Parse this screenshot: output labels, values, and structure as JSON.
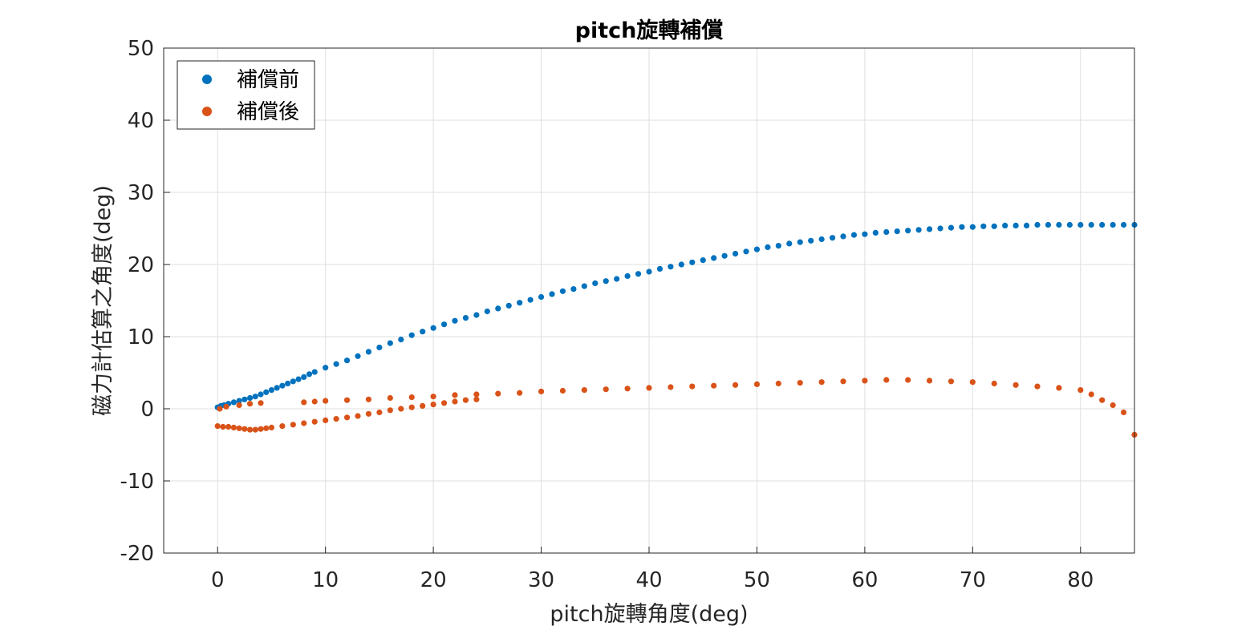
{
  "chart_data": {
    "type": "scatter",
    "title": "pitch旋轉補償",
    "xlabel": "pitch旋轉角度(deg)",
    "ylabel": "磁力計估算之角度(deg)",
    "xlim": [
      -5,
      85
    ],
    "ylim": [
      -20,
      50
    ],
    "xticks": [
      0,
      10,
      20,
      30,
      40,
      50,
      60,
      70,
      80
    ],
    "yticks": [
      -20,
      -10,
      0,
      10,
      20,
      30,
      40,
      50
    ],
    "grid": true,
    "legend_position": "top-left",
    "series": [
      {
        "name": "補償前",
        "color": "#0072BD",
        "points": [
          [
            0,
            0.2
          ],
          [
            0.3,
            0.4
          ],
          [
            0.6,
            0.5
          ],
          [
            1,
            0.7
          ],
          [
            1.5,
            0.9
          ],
          [
            2,
            1.1
          ],
          [
            2.5,
            1.3
          ],
          [
            3,
            1.5
          ],
          [
            3.5,
            1.7
          ],
          [
            4,
            2.0
          ],
          [
            4.5,
            2.3
          ],
          [
            5,
            2.6
          ],
          [
            5.5,
            2.9
          ],
          [
            6,
            3.2
          ],
          [
            6.5,
            3.5
          ],
          [
            7,
            3.8
          ],
          [
            7.5,
            4.1
          ],
          [
            8,
            4.4
          ],
          [
            8.5,
            4.8
          ],
          [
            9,
            5.1
          ],
          [
            10,
            5.7
          ],
          [
            11,
            6.2
          ],
          [
            12,
            6.7
          ],
          [
            13,
            7.3
          ],
          [
            14,
            7.9
          ],
          [
            15,
            8.5
          ],
          [
            16,
            9.1
          ],
          [
            17,
            9.6
          ],
          [
            18,
            10.2
          ],
          [
            19,
            10.7
          ],
          [
            20,
            11.2
          ],
          [
            21,
            11.7
          ],
          [
            22,
            12.2
          ],
          [
            23,
            12.6
          ],
          [
            24,
            13.0
          ],
          [
            25,
            13.5
          ],
          [
            26,
            13.9
          ],
          [
            27,
            14.3
          ],
          [
            28,
            14.7
          ],
          [
            29,
            15.1
          ],
          [
            30,
            15.5
          ],
          [
            31,
            15.9
          ],
          [
            32,
            16.3
          ],
          [
            33,
            16.6
          ],
          [
            34,
            17.0
          ],
          [
            35,
            17.4
          ],
          [
            36,
            17.7
          ],
          [
            37,
            18.0
          ],
          [
            38,
            18.4
          ],
          [
            39,
            18.7
          ],
          [
            40,
            19.0
          ],
          [
            41,
            19.4
          ],
          [
            42,
            19.7
          ],
          [
            43,
            20.0
          ],
          [
            44,
            20.3
          ],
          [
            45,
            20.6
          ],
          [
            46,
            20.9
          ],
          [
            47,
            21.2
          ],
          [
            48,
            21.5
          ],
          [
            49,
            21.8
          ],
          [
            50,
            22.1
          ],
          [
            51,
            22.4
          ],
          [
            52,
            22.6
          ],
          [
            53,
            22.9
          ],
          [
            54,
            23.1
          ],
          [
            55,
            23.3
          ],
          [
            56,
            23.5
          ],
          [
            57,
            23.7
          ],
          [
            58,
            23.9
          ],
          [
            59,
            24.1
          ],
          [
            60,
            24.2
          ],
          [
            61,
            24.4
          ],
          [
            62,
            24.5
          ],
          [
            63,
            24.6
          ],
          [
            64,
            24.7
          ],
          [
            65,
            24.8
          ],
          [
            66,
            24.9
          ],
          [
            67,
            25.0
          ],
          [
            68,
            25.1
          ],
          [
            69,
            25.2
          ],
          [
            70,
            25.2
          ],
          [
            71,
            25.3
          ],
          [
            72,
            25.3
          ],
          [
            73,
            25.4
          ],
          [
            74,
            25.4
          ],
          [
            75,
            25.4
          ],
          [
            76,
            25.5
          ],
          [
            77,
            25.5
          ],
          [
            78,
            25.5
          ],
          [
            79,
            25.5
          ],
          [
            80,
            25.5
          ],
          [
            81,
            25.5
          ],
          [
            82,
            25.5
          ],
          [
            83,
            25.5
          ],
          [
            84,
            25.5
          ],
          [
            85,
            25.5
          ]
        ]
      },
      {
        "name": "補償後",
        "color": "#D95319",
        "points": [
          [
            0,
            -2.4
          ],
          [
            0.5,
            -2.5
          ],
          [
            1,
            -2.5
          ],
          [
            1.5,
            -2.6
          ],
          [
            2,
            -2.7
          ],
          [
            2.5,
            -2.8
          ],
          [
            3,
            -2.9
          ],
          [
            3.5,
            -2.9
          ],
          [
            4,
            -2.8
          ],
          [
            4.5,
            -2.7
          ],
          [
            5,
            -2.6
          ],
          [
            6,
            -2.4
          ],
          [
            7,
            -2.2
          ],
          [
            8,
            -2.0
          ],
          [
            9,
            -1.8
          ],
          [
            10,
            -1.6
          ],
          [
            11,
            -1.4
          ],
          [
            12,
            -1.2
          ],
          [
            13,
            -1.0
          ],
          [
            14,
            -0.7
          ],
          [
            15,
            -0.5
          ],
          [
            16,
            -0.2
          ],
          [
            17,
            0.0
          ],
          [
            18,
            0.2
          ],
          [
            19,
            0.4
          ],
          [
            20,
            0.6
          ],
          [
            21,
            0.8
          ],
          [
            22,
            1.0
          ],
          [
            23,
            1.2
          ],
          [
            24,
            1.3
          ],
          [
            0.2,
            0.0
          ],
          [
            0.8,
            0.3
          ],
          [
            2,
            0.5
          ],
          [
            3,
            0.7
          ],
          [
            4,
            0.8
          ],
          [
            8,
            0.9
          ],
          [
            9,
            1.0
          ],
          [
            10,
            1.1
          ],
          [
            12,
            1.2
          ],
          [
            14,
            1.3
          ],
          [
            16,
            1.5
          ],
          [
            18,
            1.6
          ],
          [
            20,
            1.7
          ],
          [
            22,
            1.9
          ],
          [
            24,
            2.0
          ],
          [
            26,
            2.1
          ],
          [
            28,
            2.2
          ],
          [
            30,
            2.4
          ],
          [
            32,
            2.5
          ],
          [
            34,
            2.6
          ],
          [
            36,
            2.7
          ],
          [
            38,
            2.8
          ],
          [
            40,
            2.9
          ],
          [
            42,
            3.0
          ],
          [
            44,
            3.1
          ],
          [
            46,
            3.2
          ],
          [
            48,
            3.3
          ],
          [
            50,
            3.4
          ],
          [
            52,
            3.5
          ],
          [
            54,
            3.6
          ],
          [
            56,
            3.7
          ],
          [
            58,
            3.8
          ],
          [
            60,
            3.9
          ],
          [
            62,
            4.0
          ],
          [
            64,
            4.0
          ],
          [
            66,
            3.9
          ],
          [
            68,
            3.8
          ],
          [
            70,
            3.7
          ],
          [
            72,
            3.5
          ],
          [
            74,
            3.3
          ],
          [
            76,
            3.1
          ],
          [
            78,
            2.9
          ],
          [
            80,
            2.6
          ],
          [
            81,
            2.0
          ],
          [
            82,
            1.2
          ],
          [
            83,
            0.5
          ],
          [
            84,
            -0.5
          ],
          [
            85,
            -3.6
          ]
        ]
      }
    ]
  }
}
